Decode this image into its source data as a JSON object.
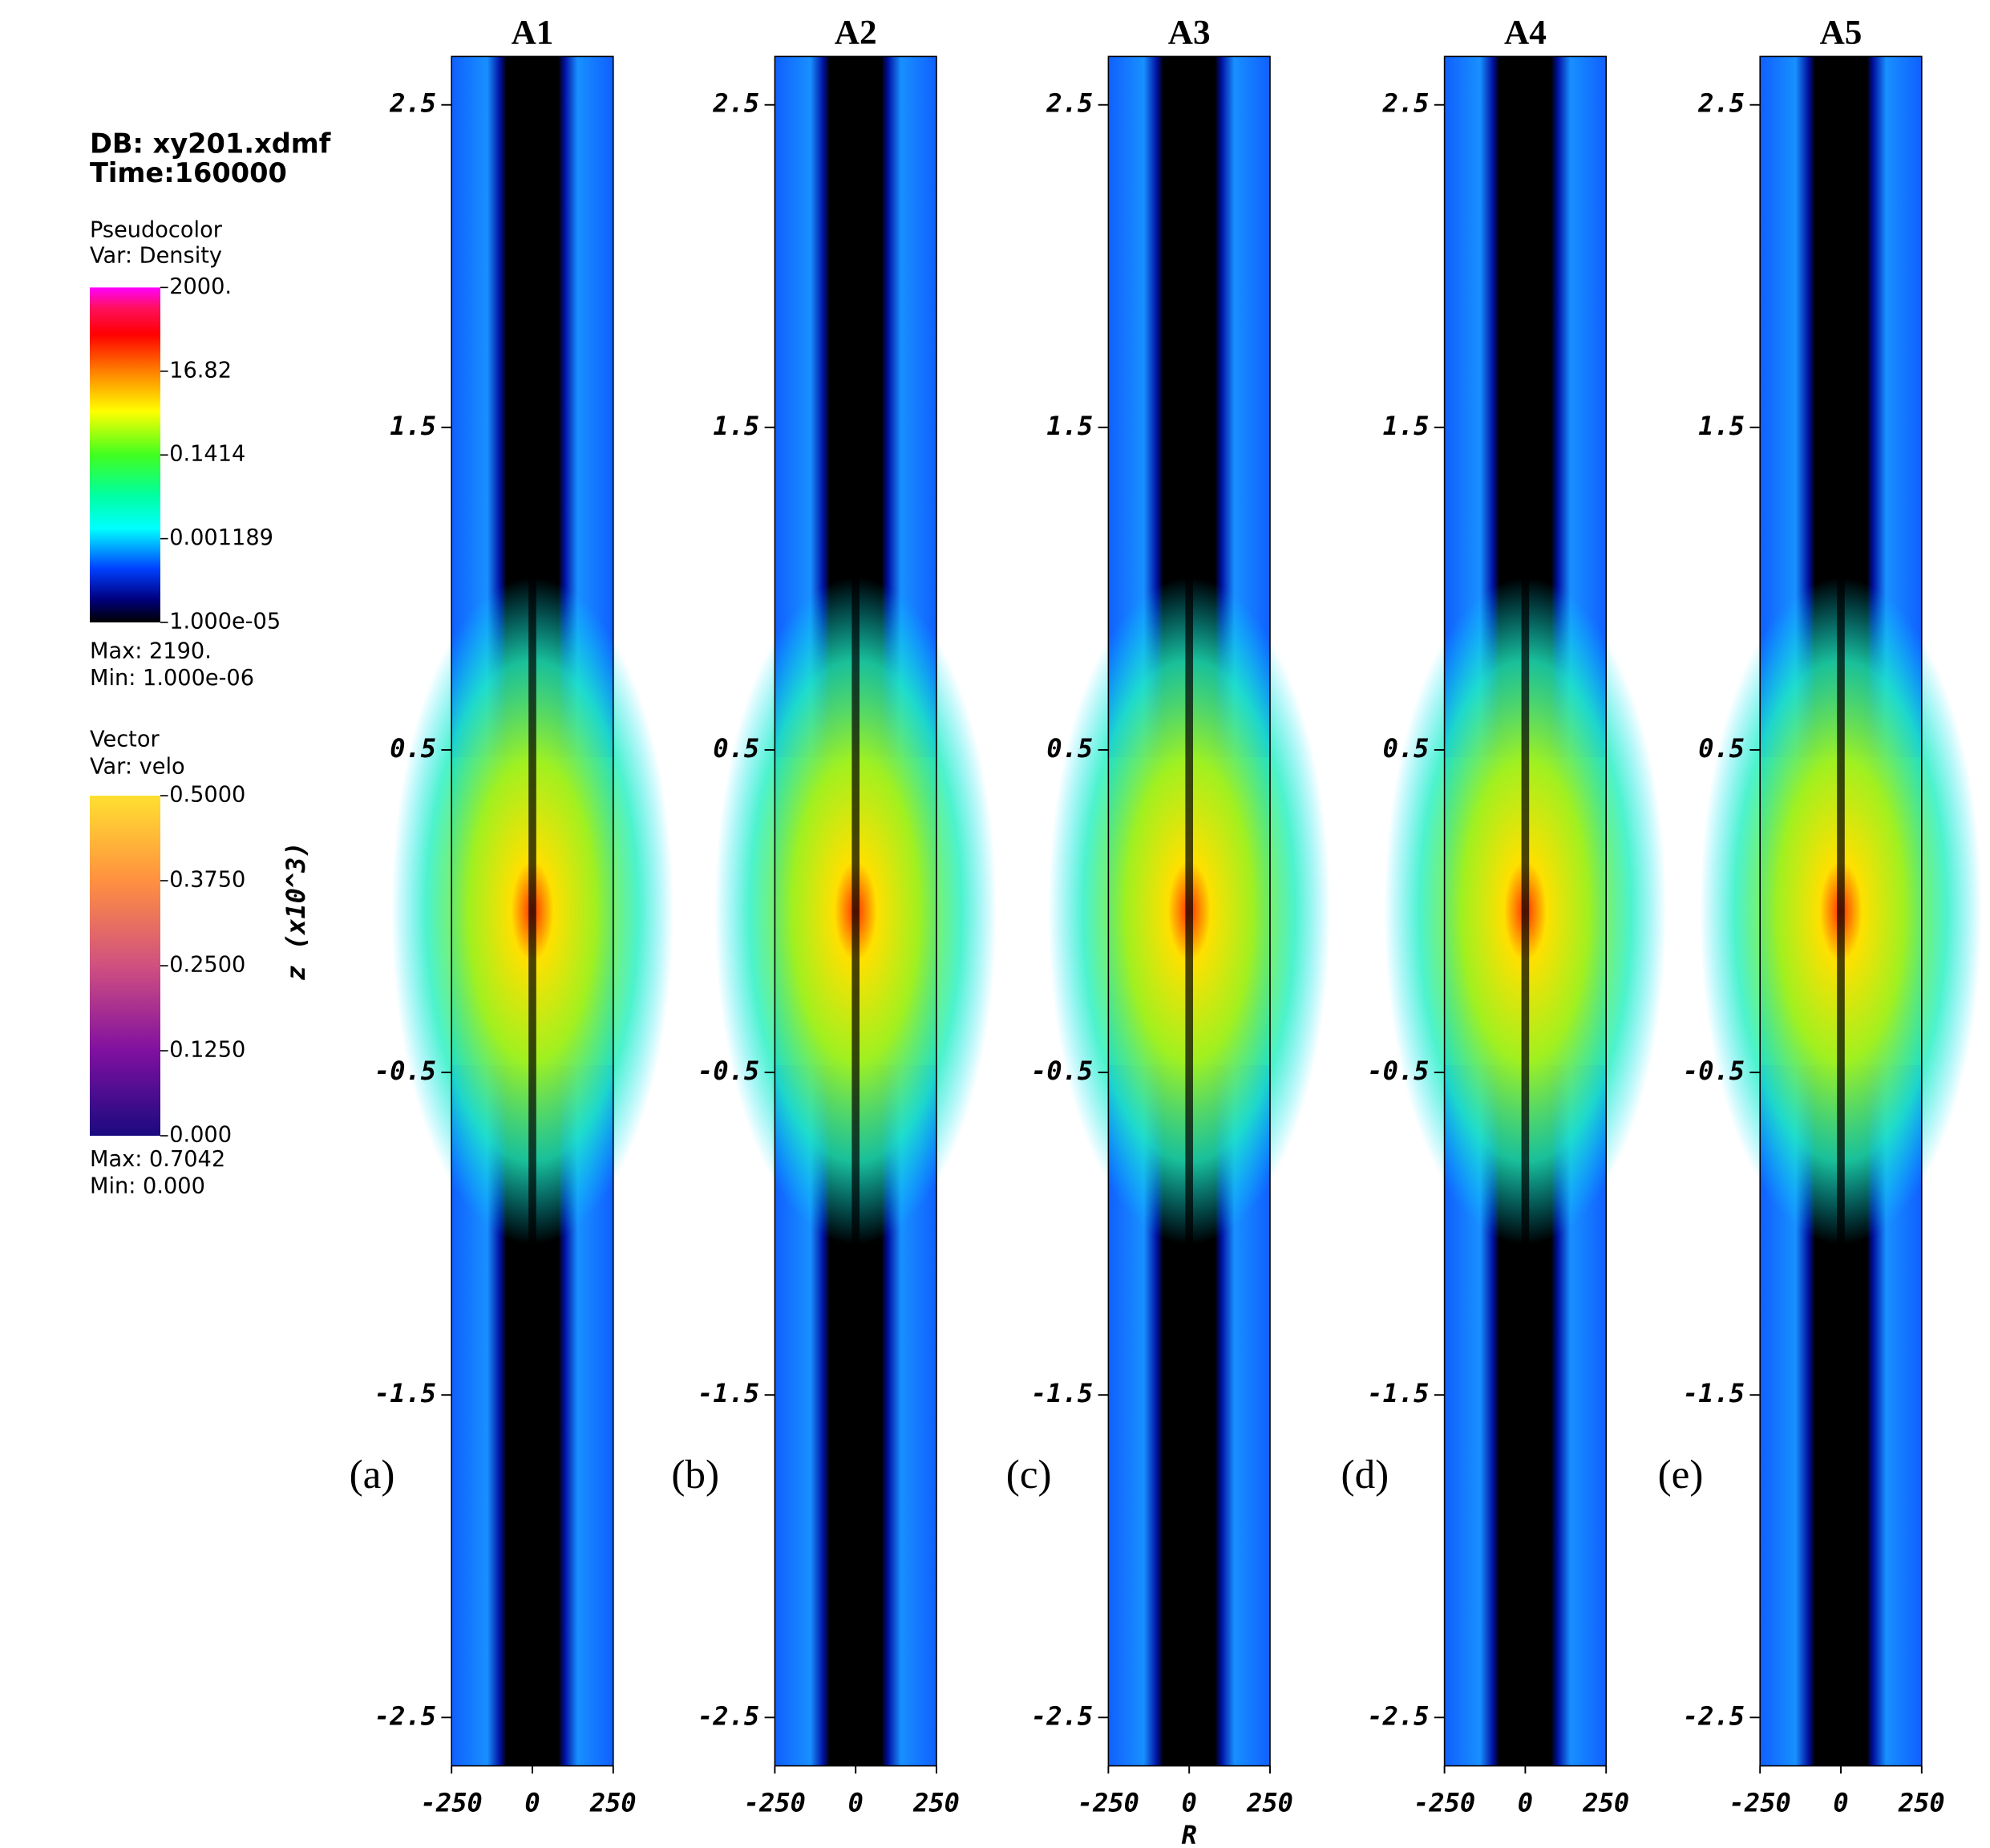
{
  "legend": {
    "db": "DB: xy201.xdmf",
    "time": "Time:160000",
    "density": {
      "title": "Pseudocolor",
      "var": "Var: Density",
      "log": true,
      "lim": [
        1e-05,
        2000
      ],
      "ticks": [
        {
          "value": 2000,
          "label": "2000."
        },
        16.82,
        0.1414,
        0.001189,
        {
          "value": 1e-05,
          "label": "1.000e-05"
        }
      ],
      "max": "Max:  2190.",
      "min": "Min:  1.000e-06"
    },
    "velocity": {
      "title": "Vector",
      "var": "Var: velo",
      "log": false,
      "lim": [
        0,
        0.5
      ],
      "ticks": [
        {
          "value": 0.5,
          "label": "0.5000"
        },
        {
          "value": 0.375,
          "label": "0.3750"
        },
        {
          "value": 0.25,
          "label": "0.2500"
        },
        {
          "value": 0.125,
          "label": "0.1250"
        },
        {
          "value": 0,
          "label": "0.000"
        }
      ],
      "max": "Max: 0.7042",
      "min": "Min: 0.000"
    }
  },
  "chart_data": [
    {
      "type": "field",
      "title": "A1",
      "label": "(a)",
      "xlim": [
        -250,
        250
      ],
      "ylim": [
        -2.65,
        2.65
      ],
      "xticks": [
        -250,
        0,
        250
      ],
      "yticks": [
        2.5,
        1.5,
        0.5,
        -0.5,
        -1.5,
        -2.5
      ]
    },
    {
      "type": "field",
      "title": "A2",
      "label": "(b)",
      "ylabel": "z (x10^3)",
      "xlim": [
        -250,
        250
      ],
      "ylim": [
        -2.65,
        2.65
      ],
      "xticks": [
        -250,
        0,
        250
      ],
      "yticks": [
        2.5,
        1.5,
        0.5,
        -0.5,
        -1.5,
        -2.5
      ]
    },
    {
      "type": "field",
      "title": "A3",
      "label": "(c)",
      "xlabel": "R",
      "xlim": [
        -250,
        250
      ],
      "ylim": [
        -2.65,
        2.65
      ],
      "xticks": [
        -250,
        0,
        250
      ],
      "yticks": [
        2.5,
        1.5,
        0.5,
        -0.5,
        -1.5,
        -2.5
      ]
    },
    {
      "type": "field",
      "title": "A4",
      "label": "(d)",
      "xlim": [
        -250,
        250
      ],
      "ylim": [
        -2.65,
        2.65
      ],
      "xticks": [
        -250,
        0,
        250
      ],
      "yticks": [
        2.5,
        1.5,
        0.5,
        -0.5,
        -1.5,
        -2.5
      ]
    },
    {
      "type": "field",
      "title": "A5",
      "label": "(e)",
      "xlim": [
        -250,
        250
      ],
      "ylim": [
        -2.65,
        2.65
      ],
      "xticks": [
        -250,
        0,
        250
      ],
      "yticks": [
        2.5,
        1.5,
        0.5,
        -0.5,
        -1.5,
        -2.5
      ]
    }
  ]
}
